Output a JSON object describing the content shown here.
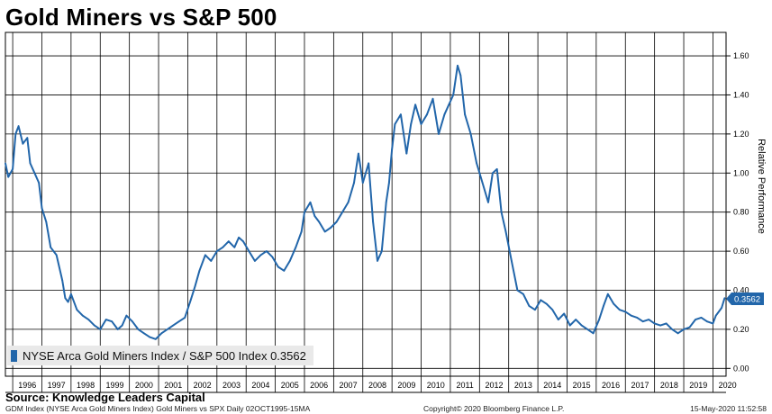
{
  "title": "Gold Miners vs S&P 500",
  "source": "Source: Knowledge Leaders Capital",
  "footer": {
    "left": "GDM Index (NYSE Arca Gold Miners Index) Gold Miners vs SPX  Daily 02OCT1995-15MA",
    "center": "Copyright© 2020 Bloomberg Finance L.P.",
    "right": "15-May-2020 11:52:58"
  },
  "legend": {
    "label": "NYSE Arca Gold Miners Index / S&P 500 Index 0.3562"
  },
  "last_value_label": "0.3562",
  "colors": {
    "line": "#2266aa",
    "grid": "#000000",
    "label_bg": "#2266aa",
    "legend_bg": "#e9e9e9"
  },
  "chart_data": {
    "type": "line",
    "title": "Gold Miners vs S&P 500",
    "ylabel": "Relative Performance",
    "xlabel": "",
    "x_unit": "year",
    "xlim": [
      1995.75,
      2020.45
    ],
    "ylim": [
      -0.04,
      1.72
    ],
    "y_ticks": [
      "0.00",
      "0.20",
      "0.40",
      "0.60",
      "0.80",
      "1.00",
      "1.20",
      "1.40",
      "1.60"
    ],
    "x_tick_labels": [
      "1996",
      "1997",
      "1998",
      "1999",
      "2000",
      "2001",
      "2002",
      "2003",
      "2004",
      "2005",
      "2006",
      "2007",
      "2008",
      "2009",
      "2010",
      "2011",
      "2012",
      "2013",
      "2014",
      "2015",
      "2016",
      "2017",
      "2018",
      "2019",
      "2020"
    ],
    "grid": true,
    "legend_position": "bottom-left",
    "series": [
      {
        "name": "NYSE Arca Gold Miners Index / S&P 500 Index",
        "last_value": 0.3562,
        "x": [
          1995.75,
          1995.85,
          1996.0,
          1996.1,
          1996.2,
          1996.35,
          1996.5,
          1996.6,
          1996.75,
          1996.9,
          1997.0,
          1997.15,
          1997.3,
          1997.5,
          1997.7,
          1997.8,
          1997.9,
          1998.0,
          1998.2,
          1998.4,
          1998.6,
          1998.8,
          1999.0,
          1999.2,
          1999.4,
          1999.6,
          1999.75,
          1999.9,
          2000.1,
          2000.3,
          2000.5,
          2000.7,
          2000.9,
          2001.1,
          2001.3,
          2001.5,
          2001.7,
          2001.9,
          2002.1,
          2002.25,
          2002.4,
          2002.6,
          2002.8,
          2003.0,
          2003.2,
          2003.4,
          2003.6,
          2003.75,
          2003.9,
          2004.1,
          2004.3,
          2004.5,
          2004.7,
          2004.9,
          2005.1,
          2005.3,
          2005.5,
          2005.7,
          2005.9,
          2006.0,
          2006.2,
          2006.35,
          2006.5,
          2006.7,
          2006.9,
          2007.1,
          2007.3,
          2007.5,
          2007.7,
          2007.85,
          2008.0,
          2008.2,
          2008.35,
          2008.5,
          2008.65,
          2008.8,
          2008.9,
          2009.0,
          2009.1,
          2009.3,
          2009.5,
          2009.65,
          2009.8,
          2010.0,
          2010.2,
          2010.4,
          2010.6,
          2010.8,
          2010.95,
          2011.1,
          2011.25,
          2011.35,
          2011.5,
          2011.7,
          2011.9,
          2012.1,
          2012.3,
          2012.45,
          2012.6,
          2012.75,
          2012.9,
          2013.1,
          2013.3,
          2013.5,
          2013.7,
          2013.9,
          2014.1,
          2014.3,
          2014.5,
          2014.7,
          2014.9,
          2015.1,
          2015.3,
          2015.5,
          2015.7,
          2015.9,
          2016.1,
          2016.25,
          2016.4,
          2016.6,
          2016.8,
          2017.0,
          2017.2,
          2017.4,
          2017.6,
          2017.8,
          2018.0,
          2018.2,
          2018.4,
          2018.6,
          2018.8,
          2019.0,
          2019.2,
          2019.4,
          2019.6,
          2019.8,
          2020.0,
          2020.1,
          2020.2,
          2020.3,
          2020.4
        ],
        "y": [
          1.05,
          0.98,
          1.02,
          1.2,
          1.24,
          1.15,
          1.18,
          1.05,
          1.0,
          0.95,
          0.82,
          0.75,
          0.62,
          0.58,
          0.45,
          0.36,
          0.34,
          0.38,
          0.3,
          0.27,
          0.25,
          0.22,
          0.2,
          0.25,
          0.24,
          0.2,
          0.22,
          0.27,
          0.24,
          0.2,
          0.18,
          0.16,
          0.15,
          0.18,
          0.2,
          0.22,
          0.24,
          0.26,
          0.35,
          0.42,
          0.5,
          0.58,
          0.55,
          0.6,
          0.62,
          0.65,
          0.62,
          0.67,
          0.65,
          0.6,
          0.55,
          0.58,
          0.6,
          0.57,
          0.52,
          0.5,
          0.55,
          0.62,
          0.7,
          0.8,
          0.85,
          0.78,
          0.75,
          0.7,
          0.72,
          0.75,
          0.8,
          0.85,
          0.95,
          1.1,
          0.95,
          1.05,
          0.75,
          0.55,
          0.6,
          0.85,
          0.95,
          1.12,
          1.25,
          1.3,
          1.1,
          1.25,
          1.35,
          1.25,
          1.3,
          1.38,
          1.2,
          1.3,
          1.35,
          1.4,
          1.55,
          1.5,
          1.3,
          1.2,
          1.05,
          0.95,
          0.85,
          1.0,
          1.02,
          0.8,
          0.7,
          0.55,
          0.4,
          0.38,
          0.32,
          0.3,
          0.35,
          0.33,
          0.3,
          0.25,
          0.28,
          0.22,
          0.25,
          0.22,
          0.2,
          0.18,
          0.25,
          0.32,
          0.38,
          0.33,
          0.3,
          0.29,
          0.27,
          0.26,
          0.24,
          0.25,
          0.23,
          0.22,
          0.23,
          0.2,
          0.18,
          0.2,
          0.21,
          0.25,
          0.26,
          0.24,
          0.23,
          0.27,
          0.29,
          0.31,
          0.36
        ]
      }
    ]
  }
}
